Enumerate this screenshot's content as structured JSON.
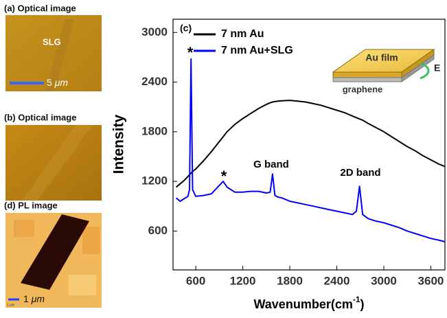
{
  "chart_data": {
    "type": "line",
    "panel_label": "(c)",
    "xlabel": "Wavenumber(cm",
    "xlabel_sup": "-1",
    "xlabel_end": ")",
    "ylabel": "Intensity",
    "x": [
      350,
      400,
      450,
      500,
      520,
      540,
      560,
      600,
      700,
      800,
      900,
      950,
      1000,
      1100,
      1200,
      1300,
      1400,
      1500,
      1550,
      1580,
      1610,
      1650,
      1700,
      1800,
      1900,
      2000,
      2100,
      2200,
      2300,
      2400,
      2500,
      2600,
      2650,
      2690,
      2730,
      2800,
      2900,
      3000,
      3100,
      3200,
      3300,
      3400,
      3500,
      3600,
      3700,
      3780
    ],
    "series": [
      {
        "name": "7 nm Au",
        "color": "#000000",
        "values": [
          1130,
          1170,
          1210,
          1260,
          1280,
          1300,
          1320,
          1350,
          1450,
          1560,
          1680,
          1740,
          1800,
          1890,
          1960,
          2020,
          2080,
          2130,
          2150,
          2160,
          2165,
          2170,
          2175,
          2180,
          2170,
          2160,
          2140,
          2120,
          2090,
          2060,
          2030,
          1990,
          1970,
          1955,
          1940,
          1900,
          1850,
          1800,
          1740,
          1680,
          1620,
          1570,
          1510,
          1460,
          1410,
          1380
        ]
      },
      {
        "name": "7 nm Au+SLG",
        "color": "#0000ff",
        "values": [
          1000,
          960,
          990,
          1020,
          1100,
          2680,
          1100,
          1020,
          1030,
          1050,
          1150,
          1200,
          1130,
          1070,
          1070,
          1080,
          1080,
          1060,
          1070,
          1290,
          1030,
          1010,
          1000,
          960,
          940,
          920,
          900,
          880,
          860,
          840,
          820,
          800,
          840,
          1140,
          800,
          750,
          720,
          700,
          670,
          640,
          600,
          570,
          540,
          510,
          490,
          470
        ]
      }
    ],
    "xlim": [
      310,
      3780
    ],
    "ylim": [
      130,
      3160
    ],
    "xticks": [
      600,
      1200,
      1800,
      2400,
      3000,
      3600
    ],
    "yticks": [
      600,
      1200,
      1800,
      2400,
      3000
    ],
    "legend": "upper left",
    "annotations": [
      "*",
      "*",
      "G band",
      "2D band"
    ],
    "inset": {
      "film": "Au film",
      "field": "E",
      "substrate": "graphene"
    }
  },
  "panels": {
    "a": {
      "title": "(a) Optical image",
      "label": "SLG",
      "scale": "5",
      "unit": "μm"
    },
    "b": {
      "title": "(b) Optical image"
    },
    "d": {
      "title": "(d) PL image",
      "scale": "1",
      "unit": "μm",
      "bar_text": "1 μm"
    }
  }
}
